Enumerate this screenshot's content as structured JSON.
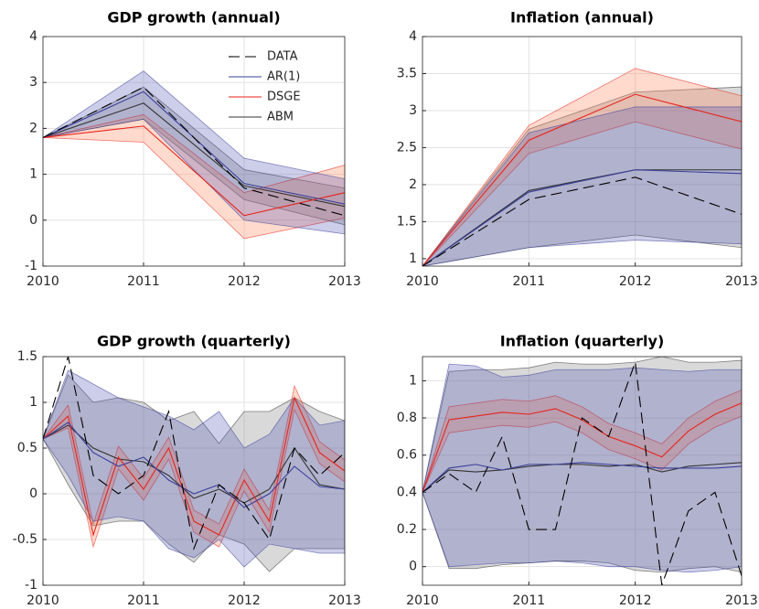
{
  "chart_data": [
    {
      "type": "line",
      "title": "GDP growth (annual)",
      "legend": "upper-right",
      "x": [
        2010,
        2011,
        2012,
        2013
      ],
      "xlim": [
        2010,
        2013
      ],
      "xticks": [
        2010,
        2011,
        2012,
        2013
      ],
      "ylim": [
        -1,
        4
      ],
      "yticks": [
        -1,
        0,
        1,
        2,
        3,
        4
      ],
      "grid": true,
      "series": [
        {
          "name": "DATA",
          "color": "#000000",
          "dashed": true,
          "values": [
            1.8,
            2.9,
            0.7,
            0.1
          ]
        },
        {
          "name": "AR(1)",
          "color": "#3a3f9a",
          "band_color": "#4b4fb0",
          "values": [
            1.8,
            2.8,
            0.8,
            0.35
          ],
          "lower": [
            1.8,
            2.2,
            0.0,
            -0.3
          ],
          "upper": [
            1.8,
            3.25,
            1.35,
            0.9
          ]
        },
        {
          "name": "DSGE",
          "color": "#e8231b",
          "band_color": "#ff7a4a",
          "values": [
            1.8,
            2.05,
            0.1,
            0.6
          ],
          "lower": [
            1.8,
            1.7,
            -0.4,
            0.05
          ],
          "upper": [
            1.8,
            2.3,
            0.6,
            1.2
          ]
        },
        {
          "name": "ABM",
          "color": "#333333",
          "band_color": "#777777",
          "values": [
            1.8,
            2.55,
            0.75,
            0.3
          ],
          "lower": [
            1.8,
            2.2,
            0.45,
            -0.1
          ],
          "upper": [
            1.8,
            2.9,
            1.1,
            0.7
          ]
        }
      ]
    },
    {
      "type": "line",
      "title": "Inflation (annual)",
      "x": [
        2010,
        2011,
        2012,
        2013
      ],
      "xlim": [
        2010,
        2013
      ],
      "xticks": [
        2010,
        2011,
        2012,
        2013
      ],
      "ylim": [
        0.9,
        4
      ],
      "yticks": [
        1,
        1.5,
        2,
        2.5,
        3,
        3.5,
        4
      ],
      "grid": true,
      "series": [
        {
          "name": "DATA",
          "color": "#000000",
          "dashed": true,
          "values": [
            0.9,
            1.8,
            2.1,
            1.6
          ]
        },
        {
          "name": "AR(1)",
          "color": "#3a3f9a",
          "band_color": "#4b4fb0",
          "values": [
            0.9,
            1.9,
            2.2,
            2.15
          ],
          "lower": [
            0.9,
            1.15,
            1.25,
            1.2
          ],
          "upper": [
            0.9,
            2.7,
            3.05,
            3.05
          ]
        },
        {
          "name": "DSGE",
          "color": "#e8231b",
          "band_color": "#ff7a4a",
          "values": [
            0.9,
            2.6,
            3.22,
            2.85
          ],
          "lower": [
            0.9,
            2.42,
            2.85,
            2.48
          ],
          "upper": [
            0.9,
            2.8,
            3.57,
            3.2
          ]
        },
        {
          "name": "ABM",
          "color": "#333333",
          "band_color": "#777777",
          "values": [
            0.9,
            1.92,
            2.2,
            2.2
          ],
          "lower": [
            0.9,
            1.15,
            1.32,
            1.15
          ],
          "upper": [
            0.9,
            2.75,
            3.25,
            3.32
          ]
        }
      ]
    },
    {
      "type": "line",
      "title": "GDP growth (quarterly)",
      "x": [
        2010,
        2010.25,
        2010.5,
        2010.75,
        2011,
        2011.25,
        2011.5,
        2011.75,
        2012,
        2012.25,
        2012.5,
        2012.75,
        2013
      ],
      "xlim": [
        2010,
        2013
      ],
      "xticks": [
        2010,
        2011,
        2012,
        2013
      ],
      "ylim": [
        -1,
        1.5
      ],
      "yticks": [
        -1,
        -0.5,
        0,
        0.5,
        1,
        1.5
      ],
      "grid": true,
      "series": [
        {
          "name": "DATA",
          "color": "#000000",
          "dashed": true,
          "values": [
            0.6,
            1.5,
            0.2,
            0.0,
            0.2,
            0.9,
            -0.6,
            0.1,
            -0.1,
            -0.5,
            0.5,
            0.2,
            0.45
          ]
        },
        {
          "name": "AR(1)",
          "color": "#3a3f9a",
          "band_color": "#4b4fb0",
          "values": [
            0.6,
            0.78,
            0.45,
            0.3,
            0.4,
            0.15,
            0.0,
            0.1,
            -0.15,
            0.0,
            0.3,
            0.08,
            0.05
          ],
          "lower": [
            0.6,
            0.2,
            -0.3,
            -0.25,
            -0.3,
            -0.6,
            -0.7,
            -0.5,
            -0.8,
            -0.55,
            -0.6,
            -0.65,
            -0.65
          ],
          "upper": [
            0.6,
            1.35,
            1.2,
            1.05,
            0.95,
            0.85,
            0.7,
            0.9,
            0.5,
            0.65,
            1.05,
            0.75,
            0.8
          ]
        },
        {
          "name": "DSGE",
          "color": "#e8231b",
          "band_color": "#ff7a4a",
          "values": [
            0.6,
            0.85,
            -0.45,
            0.4,
            0.05,
            0.5,
            -0.3,
            -0.45,
            0.15,
            -0.3,
            1.05,
            0.45,
            0.25
          ],
          "lower": [
            0.6,
            0.72,
            -0.58,
            0.27,
            -0.07,
            0.38,
            -0.42,
            -0.58,
            0.03,
            -0.42,
            0.92,
            0.33,
            0.13
          ],
          "upper": [
            0.6,
            0.97,
            -0.33,
            0.52,
            0.17,
            0.62,
            -0.18,
            -0.33,
            0.27,
            -0.18,
            1.18,
            0.57,
            0.37
          ]
        },
        {
          "name": "ABM",
          "color": "#333333",
          "band_color": "#777777",
          "values": [
            0.6,
            0.75,
            0.5,
            0.38,
            0.35,
            0.2,
            -0.05,
            0.05,
            -0.1,
            0.05,
            0.5,
            0.1,
            0.05
          ],
          "lower": [
            0.6,
            0.1,
            -0.35,
            -0.3,
            -0.3,
            -0.55,
            -0.75,
            -0.45,
            -0.55,
            -0.85,
            -0.6,
            -0.6,
            -0.6
          ],
          "upper": [
            0.6,
            1.3,
            1.0,
            1.05,
            1.0,
            0.8,
            0.9,
            0.55,
            0.9,
            0.9,
            1.05,
            0.9,
            0.8
          ]
        }
      ]
    },
    {
      "type": "line",
      "title": "Inflation (quarterly)",
      "x": [
        2010,
        2010.25,
        2010.5,
        2010.75,
        2011,
        2011.25,
        2011.5,
        2011.75,
        2012,
        2012.25,
        2012.5,
        2012.75,
        2013
      ],
      "xlim": [
        2010,
        2013
      ],
      "xticks": [
        2010,
        2011,
        2012,
        2013
      ],
      "ylim": [
        -0.1,
        1.13
      ],
      "yticks": [
        0,
        0.2,
        0.4,
        0.6,
        0.8,
        1
      ],
      "grid": true,
      "series": [
        {
          "name": "DATA",
          "color": "#000000",
          "dashed": true,
          "values": [
            0.4,
            0.5,
            0.4,
            0.7,
            0.2,
            0.2,
            0.8,
            0.7,
            1.1,
            -0.1,
            0.3,
            0.4,
            -0.05
          ]
        },
        {
          "name": "AR(1)",
          "color": "#3a3f9a",
          "band_color": "#4b4fb0",
          "values": [
            0.4,
            0.53,
            0.55,
            0.52,
            0.55,
            0.55,
            0.56,
            0.55,
            0.54,
            0.53,
            0.53,
            0.53,
            0.54
          ],
          "lower": [
            0.4,
            0.0,
            0.01,
            0.02,
            0.02,
            0.03,
            0.02,
            0.0,
            0.0,
            -0.02,
            -0.03,
            -0.02,
            0.0
          ],
          "upper": [
            0.4,
            1.09,
            1.08,
            1.02,
            1.03,
            1.06,
            1.06,
            1.06,
            1.07,
            1.06,
            1.05,
            1.06,
            1.06
          ]
        },
        {
          "name": "DSGE",
          "color": "#e8231b",
          "band_color": "#ff7a4a",
          "values": [
            0.4,
            0.79,
            0.81,
            0.83,
            0.82,
            0.85,
            0.79,
            0.7,
            0.65,
            0.59,
            0.73,
            0.82,
            0.88
          ],
          "lower": [
            0.4,
            0.72,
            0.74,
            0.76,
            0.75,
            0.78,
            0.72,
            0.63,
            0.58,
            0.52,
            0.66,
            0.75,
            0.81
          ],
          "upper": [
            0.4,
            0.86,
            0.88,
            0.9,
            0.89,
            0.92,
            0.86,
            0.77,
            0.72,
            0.66,
            0.8,
            0.89,
            0.95
          ]
        },
        {
          "name": "ABM",
          "color": "#333333",
          "band_color": "#777777",
          "values": [
            0.4,
            0.52,
            0.51,
            0.52,
            0.54,
            0.55,
            0.55,
            0.54,
            0.55,
            0.51,
            0.54,
            0.55,
            0.56
          ],
          "lower": [
            0.4,
            -0.01,
            -0.01,
            0.01,
            0.02,
            0.03,
            0.03,
            0.02,
            -0.02,
            -0.03,
            -0.01,
            0.0,
            -0.03
          ],
          "upper": [
            0.4,
            1.05,
            1.06,
            1.06,
            1.07,
            1.1,
            1.09,
            1.09,
            1.1,
            1.13,
            1.1,
            1.1,
            1.11
          ]
        }
      ]
    }
  ]
}
